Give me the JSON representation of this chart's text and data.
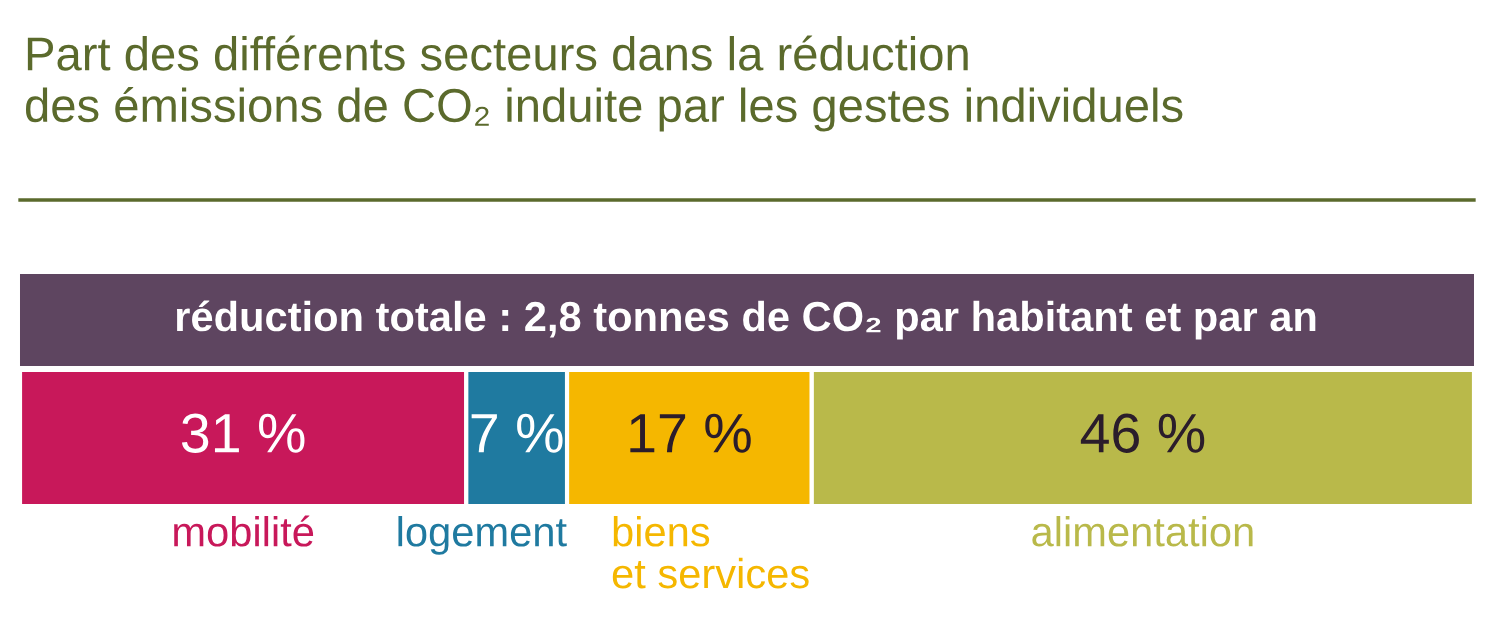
{
  "chart_data": {
    "type": "bar",
    "orientation": "horizontal",
    "stacked": true,
    "title": "Part des différents secteurs dans la réduction\ndes émissions de CO₂ induite par les gestes individuels",
    "annotations": [
      "réduction totale : 2,8 tonnes de CO₂ par habitant et par an"
    ],
    "categories": [
      null
    ],
    "series": [
      {
        "name": "mobilité",
        "color": "#c8185a",
        "values": [
          31
        ],
        "value_labels": [
          "31 %"
        ]
      },
      {
        "name": "logement",
        "color": "#1f7aa0",
        "values": [
          7
        ],
        "value_labels": [
          "7 %"
        ]
      },
      {
        "name": "biens\net services",
        "color": "#f5b700",
        "values": [
          17
        ],
        "value_labels": [
          "17 %"
        ]
      },
      {
        "name": "alimentation",
        "color": "#b9b94a",
        "values": [
          46
        ],
        "value_labels": [
          "46 %"
        ]
      }
    ]
  }
}
